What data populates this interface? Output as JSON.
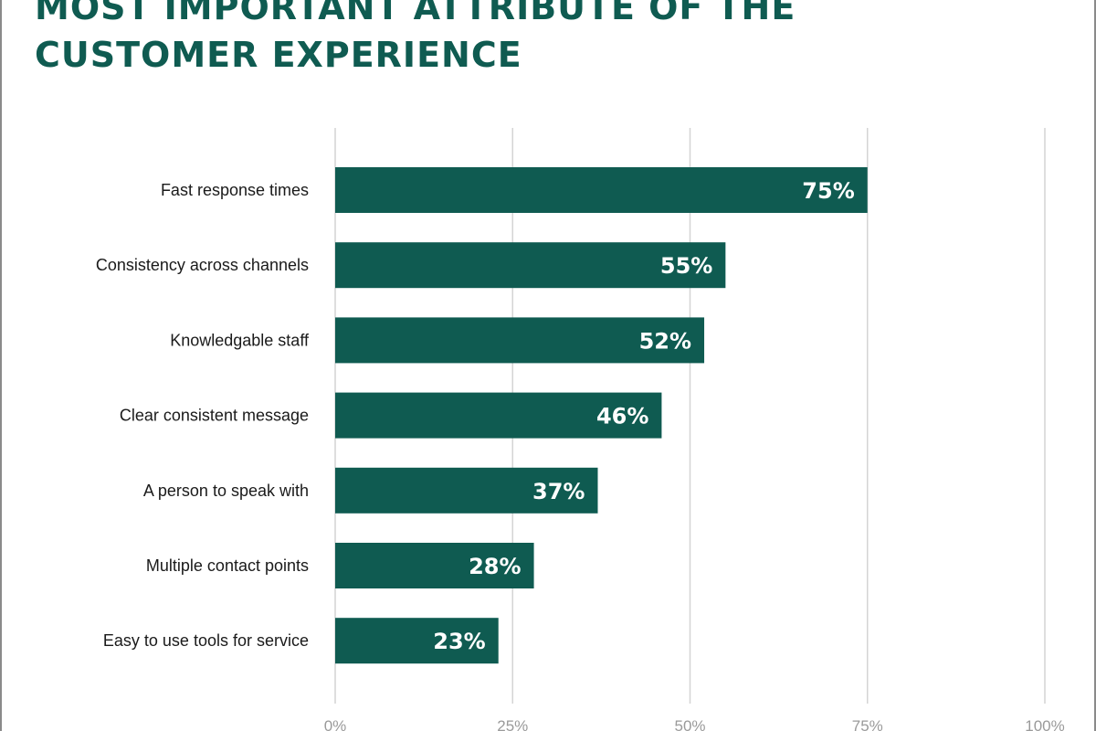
{
  "title": "MOST IMPORTANT ATTRIBUTE OF THE\nCUSTOMER EXPERIENCE",
  "colors": {
    "bar": "#0f5b51",
    "grid": "#d4d4d4",
    "category_text": "#1a1a1a",
    "tick_text": "#9a9a9a",
    "value_text": "#ffffff",
    "title": "#0f5b51"
  },
  "chart_data": {
    "type": "bar",
    "orientation": "horizontal",
    "title": "MOST IMPORTANT ATTRIBUTE OF THE CUSTOMER EXPERIENCE",
    "xlabel": "",
    "ylabel": "",
    "categories": [
      "Fast response times",
      "Consistency across channels",
      "Knowledgable staff",
      "Clear consistent message",
      "A person to speak with",
      "Multiple contact points",
      "Easy to use tools for service"
    ],
    "values": [
      75,
      55,
      52,
      46,
      37,
      28,
      23
    ],
    "value_labels": [
      "75%",
      "55%",
      "52%",
      "46%",
      "37%",
      "28%",
      "23%"
    ],
    "xlim": [
      0,
      100
    ],
    "x_ticks": [
      0,
      25,
      50,
      75,
      100
    ],
    "x_tick_labels": [
      "0%",
      "25%",
      "50%",
      "75%",
      "100%"
    ],
    "grid": "vertical",
    "legend": "none"
  }
}
